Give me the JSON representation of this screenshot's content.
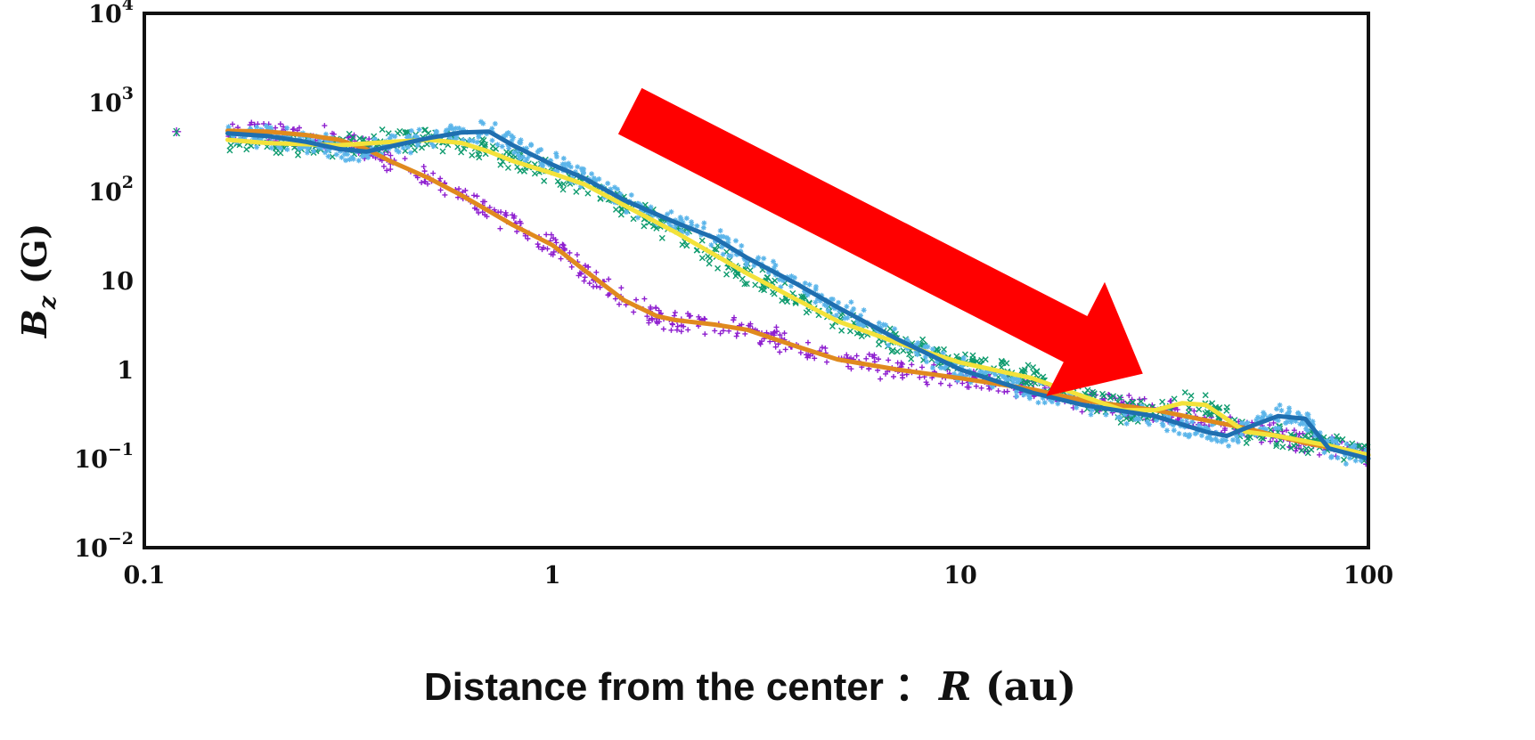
{
  "chart_data": {
    "type": "scatter",
    "x_scale": "log",
    "y_scale": "log",
    "xlim": [
      0.1,
      100
    ],
    "ylim": [
      0.01,
      10000
    ],
    "grid": false,
    "x_ticks": [
      {
        "value": 0.1,
        "label": "0.1"
      },
      {
        "value": 1,
        "label": "1"
      },
      {
        "value": 10,
        "label": "10"
      },
      {
        "value": 100,
        "label": "100"
      }
    ],
    "y_ticks": [
      {
        "value": 10000,
        "base": "10",
        "exp": "4"
      },
      {
        "value": 1000,
        "base": "10",
        "exp": "3"
      },
      {
        "value": 100,
        "base": "10",
        "exp": "2"
      },
      {
        "value": 10,
        "base": "10",
        "exp": ""
      },
      {
        "value": 1,
        "base": "1",
        "exp": ""
      },
      {
        "value": 0.1,
        "base": "10",
        "exp": "−1"
      },
      {
        "value": 0.01,
        "base": "10",
        "exp": "−2"
      }
    ],
    "ylabel": {
      "main": "B",
      "sub": "z",
      "unit": " (G)"
    },
    "xlabel": {
      "text": "Distance from the center ",
      "colon": "：",
      "var": "R",
      "unit": " (au)"
    },
    "annotation": {
      "type": "arrow",
      "direction": "down-right",
      "color": "#ff0000",
      "from": [
        1.55,
        800
      ],
      "to": [
        28.0,
        0.9
      ]
    },
    "series": [
      {
        "marker": "+",
        "color": "#8e1fcf",
        "line_color": "#e08a1e",
        "x": [
          0.12,
          0.16,
          0.2,
          0.25,
          0.3,
          0.35,
          0.4,
          0.5,
          0.6,
          0.7,
          0.8,
          1.0,
          1.2,
          1.5,
          1.8,
          2.0,
          2.5,
          3.0,
          4.0,
          5.0,
          7.0,
          10.0,
          15.0,
          20.0,
          30.0,
          50.0,
          70.0,
          100.0
        ],
        "y": [
          480,
          480,
          470,
          430,
          380,
          300,
          220,
          140,
          90,
          60,
          42,
          25,
          13,
          6,
          4,
          3.6,
          3.2,
          2.8,
          1.8,
          1.3,
          1.0,
          0.8,
          0.6,
          0.45,
          0.35,
          0.22,
          0.15,
          0.11
        ]
      },
      {
        "marker": "x",
        "color": "#0f9b6e",
        "line_color": "#f3e23b",
        "x": [
          0.12,
          0.16,
          0.2,
          0.3,
          0.4,
          0.5,
          0.6,
          0.7,
          0.8,
          1.0,
          1.2,
          1.5,
          2.0,
          3.0,
          4.0,
          5.0,
          7.0,
          10.0,
          15.0,
          20.0,
          25.0,
          30.0,
          35.0,
          40.0,
          50.0,
          60.0,
          80.0,
          100.0
        ],
        "y": [
          480,
          380,
          350,
          330,
          360,
          380,
          350,
          280,
          220,
          160,
          120,
          70,
          35,
          12,
          6,
          3.5,
          2.0,
          1.2,
          0.8,
          0.5,
          0.35,
          0.35,
          0.42,
          0.4,
          0.2,
          0.18,
          0.14,
          0.11
        ]
      },
      {
        "marker": "*",
        "color": "#5bb5ea",
        "line_color": "#1f6fb0",
        "x": [
          0.16,
          0.2,
          0.25,
          0.3,
          0.35,
          0.4,
          0.5,
          0.6,
          0.7,
          0.8,
          1.0,
          1.2,
          1.5,
          2.0,
          2.5,
          3.0,
          4.0,
          5.0,
          7.0,
          10.0,
          15.0,
          20.0,
          30.0,
          40.0,
          45.0,
          50.0,
          60.0,
          70.0,
          80.0,
          100.0
        ],
        "y": [
          450,
          420,
          360,
          300,
          280,
          320,
          400,
          460,
          470,
          330,
          200,
          140,
          80,
          45,
          30,
          18,
          9,
          5,
          2.2,
          1.0,
          0.55,
          0.4,
          0.3,
          0.2,
          0.18,
          0.22,
          0.3,
          0.28,
          0.13,
          0.1
        ]
      }
    ]
  }
}
